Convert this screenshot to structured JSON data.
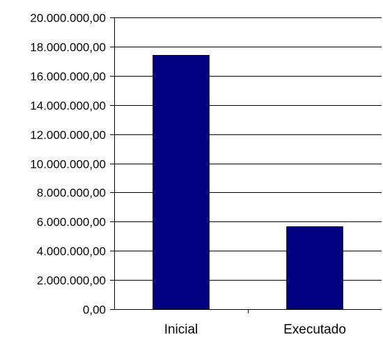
{
  "chart_data": {
    "type": "bar",
    "categories": [
      "Inicial",
      "Executado"
    ],
    "series": [
      {
        "values": [
          17400000,
          5650000
        ]
      }
    ],
    "y_ticks": [
      "0,00",
      "2.000.000,00",
      "4.000.000,00",
      "6.000.000,00",
      "8.000.000,00",
      "10.000.000,00",
      "12.000.000,00",
      "14.000.000,00",
      "16.000.000,00",
      "18.000.000,00",
      "20.000.000,00"
    ],
    "ylim": [
      0,
      20000000
    ],
    "y_step": 2000000,
    "grid": true,
    "legend": "none",
    "colors": {
      "bar": "#000080",
      "bar_edge": "#000000",
      "grid": "#000000",
      "background": "#ffffff"
    }
  }
}
